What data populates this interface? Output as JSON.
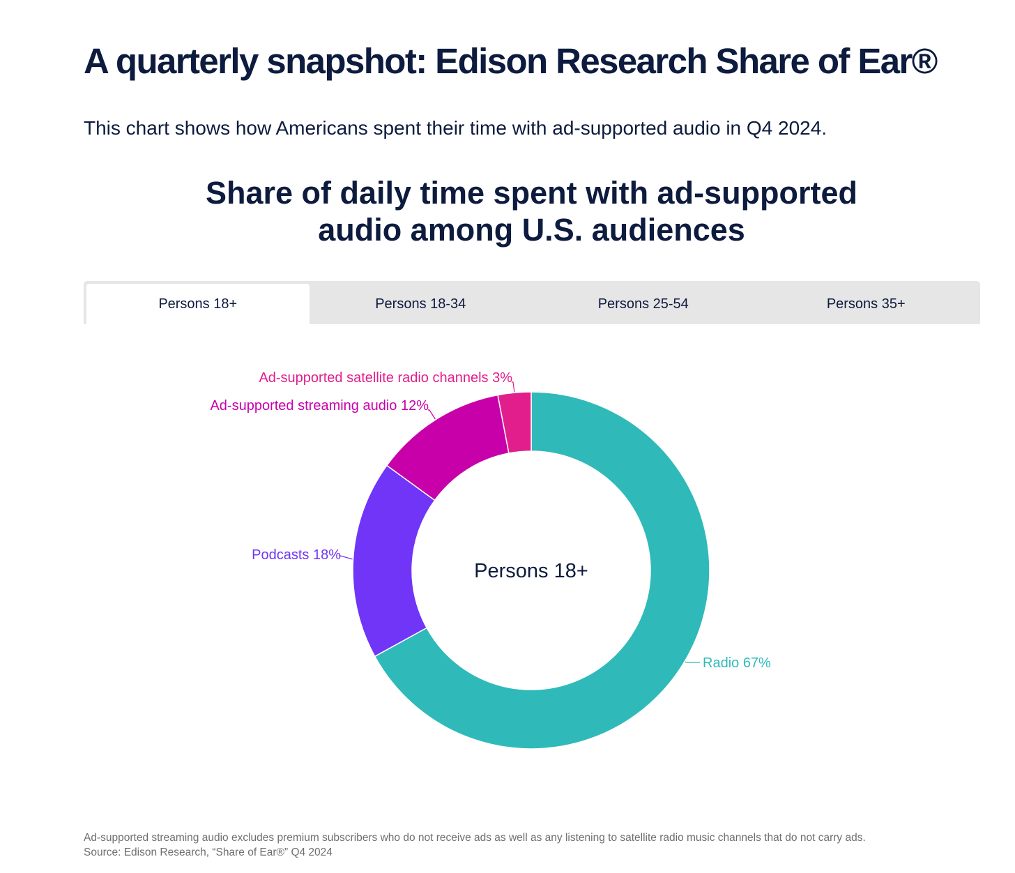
{
  "header": {
    "title": "A quarterly snapshot: Edison Research Share of Ear®",
    "subtitle": "This chart shows how Americans spent their time with ad-supported audio in Q4 2024."
  },
  "tabs": [
    {
      "label": "Persons 18+",
      "active": true
    },
    {
      "label": "Persons 18-34",
      "active": false
    },
    {
      "label": "Persons 25-54",
      "active": false
    },
    {
      "label": "Persons 35+",
      "active": false
    }
  ],
  "chart_data": {
    "type": "pie",
    "title": "Share of daily time spent with ad-supported audio among U.S. audiences",
    "title_lines": [
      "Share of daily time spent with ad-supported",
      "audio among U.S. audiences"
    ],
    "center_label": "Persons 18+",
    "unit": "%",
    "slices": [
      {
        "name": "Radio",
        "value": 67,
        "label": "Radio 67%",
        "color": "#2fbab9"
      },
      {
        "name": "Podcasts",
        "value": 18,
        "label": "Podcasts 18%",
        "color": "#7035f6"
      },
      {
        "name": "Ad-supported streaming audio",
        "value": 12,
        "label": "Ad-supported streaming audio 12%",
        "color": "#c800aa"
      },
      {
        "name": "Ad-supported satellite radio channels",
        "value": 3,
        "label": "Ad-supported satellite radio channels 3%",
        "color": "#e21e8c"
      }
    ]
  },
  "footnote": {
    "line1": "Ad-supported streaming audio excludes premium subscribers who do not receive ads as well as any listening to satellite radio music channels that do not carry ads.",
    "line2": "Source: Edison Research, “Share of Ear®” Q4 2024"
  }
}
